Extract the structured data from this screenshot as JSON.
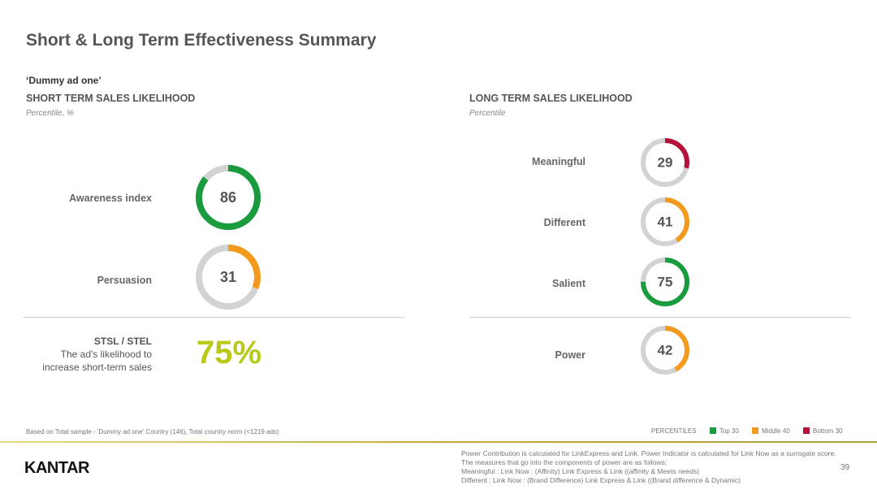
{
  "title": "Short & Long Term Effectiveness Summary",
  "ad_name": "‘Dummy ad one’",
  "short_term": {
    "heading": "SHORT TERM SALES LIKELIHOOD",
    "subheading": "Percentile, %",
    "metrics": [
      {
        "label": "Awareness index",
        "value": 86,
        "band": "top"
      },
      {
        "label": "Persuasion",
        "value": 31,
        "band": "middle"
      }
    ],
    "stsl": {
      "label": "STSL / STEL",
      "desc1": "The ad's likelihood to",
      "desc2": "increase short-term sales",
      "value": "75%"
    }
  },
  "long_term": {
    "heading": "LONG TERM SALES LIKELIHOOD",
    "subheading": "Percentile",
    "metrics": [
      {
        "label": "Meaningful",
        "value": 29,
        "band": "bottom"
      },
      {
        "label": "Different",
        "value": 41,
        "band": "middle"
      },
      {
        "label": "Salient",
        "value": 75,
        "band": "top"
      },
      {
        "label": "Power",
        "value": 42,
        "band": "middle"
      }
    ]
  },
  "colors": {
    "top": "#1a9c3e",
    "middle": "#f39a1e",
    "bottom": "#b5123a",
    "track": "#d3d3d3",
    "stsl": "#b8c91a"
  },
  "legend": {
    "title": "PERCENTILES",
    "items": [
      {
        "label": "Top 30",
        "band": "top"
      },
      {
        "label": "Middle 40",
        "band": "middle"
      },
      {
        "label": "Bottom 30",
        "band": "bottom"
      }
    ]
  },
  "footer": {
    "base": "Based on Total sample - 'Dummy ad one' Country (146), Total country norm (<1219 ads)",
    "logo": "KANTAR",
    "page": "39",
    "notes": [
      "Power Contribution is calculated for LinkExpress and Link. Power Indicator is calculated for Link Now as a surrogate score. The measures that go into the components of power are as follows;",
      "Meaningful : Link Now : (Affinity) Link Express & Link ((affinity & Meets needs)",
      "Different : Link Now : (Brand Difference) Link Express & Link ((Brand difference & Dynamic)"
    ]
  }
}
